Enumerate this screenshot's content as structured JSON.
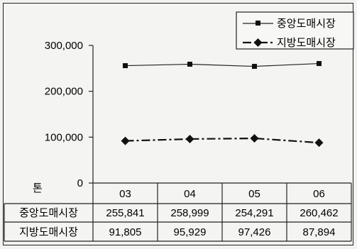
{
  "chart_data": {
    "type": "line",
    "categories": [
      "03",
      "04",
      "05",
      "06"
    ],
    "series": [
      {
        "name": "중앙도매시장",
        "marker": "square",
        "line_style": "solid",
        "color": "#222222",
        "values": [
          255841,
          258999,
          254291,
          260462
        ],
        "value_labels": [
          "255,841",
          "258,999",
          "254,291",
          "260,462"
        ]
      },
      {
        "name": "지방도매시장",
        "marker": "diamond",
        "line_style": "dash-dot",
        "color": "#111111",
        "values": [
          91805,
          95929,
          97426,
          87894
        ],
        "value_labels": [
          "91,805",
          "95,929",
          "97,426",
          "87,894"
        ]
      }
    ],
    "unit_label": "톤",
    "y_ticks": [
      0,
      100000,
      200000,
      300000
    ],
    "y_tick_labels": [
      "0",
      "100,000",
      "200,000",
      "300,000"
    ],
    "ylim": [
      0,
      300000
    ],
    "grid": false,
    "legend_position": "top-right",
    "data_table": true
  }
}
